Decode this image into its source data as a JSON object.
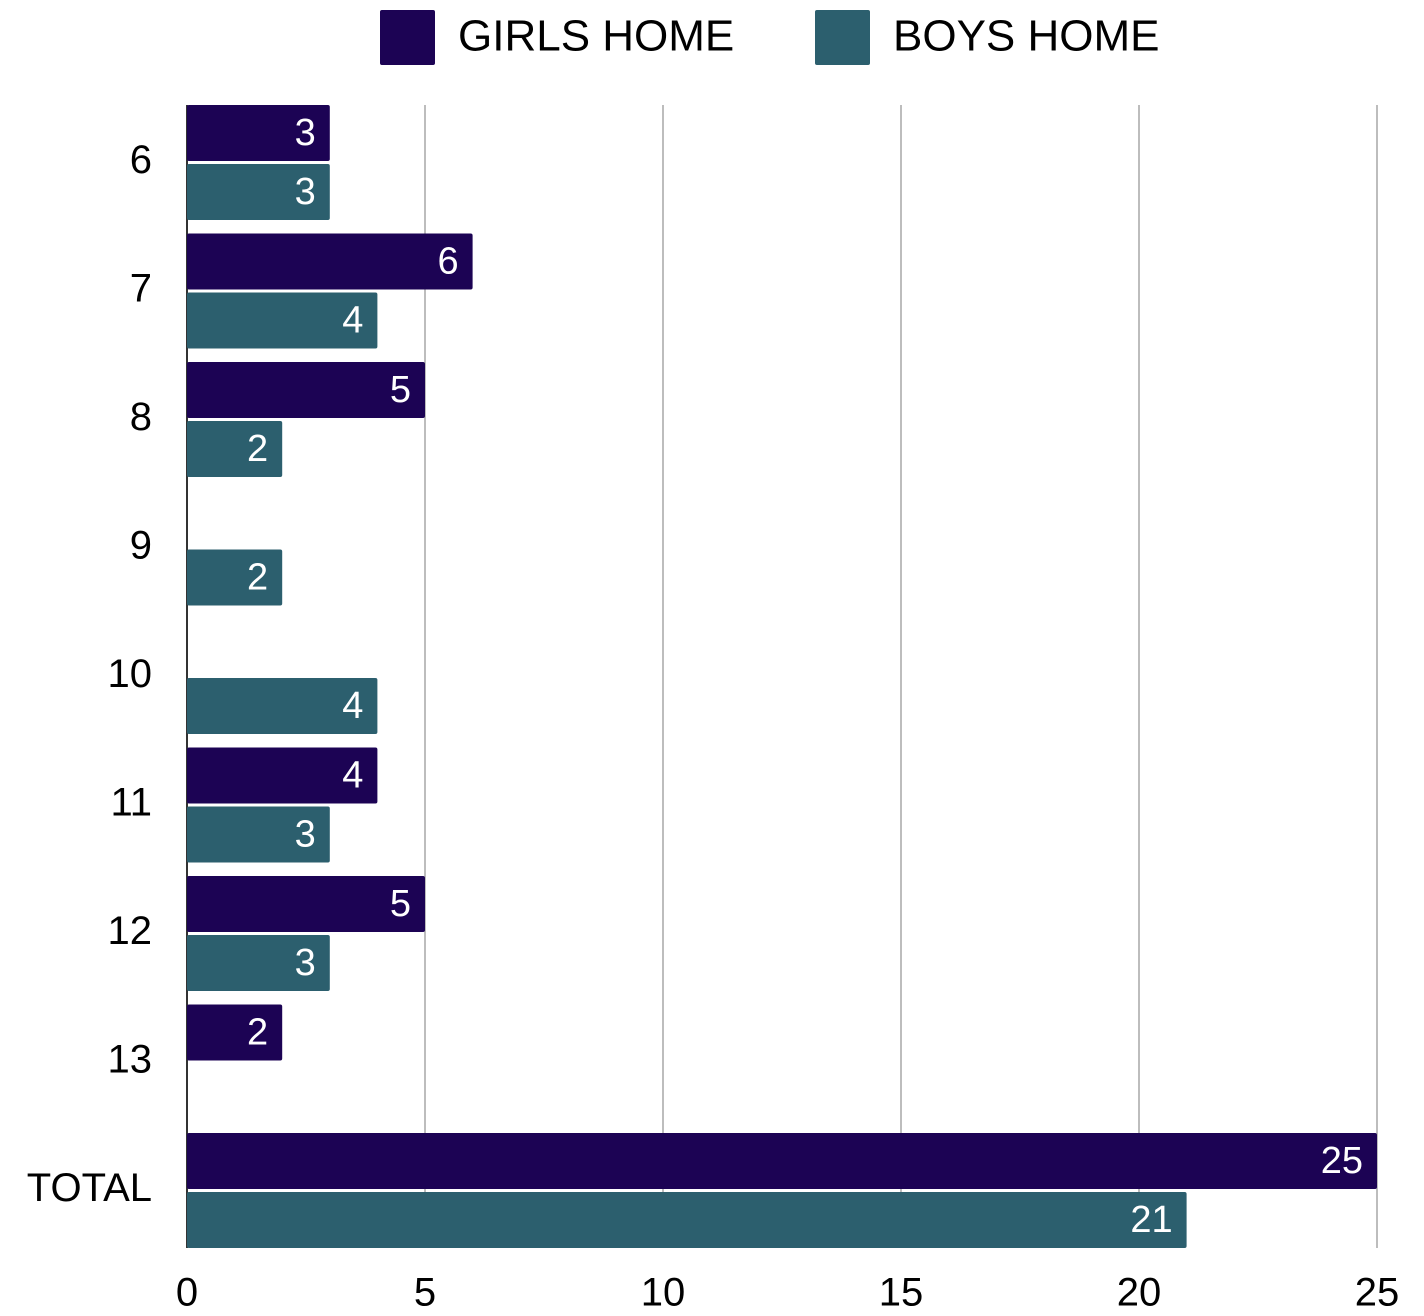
{
  "chart_data": {
    "type": "hbar",
    "categories": [
      "6",
      "7",
      "8",
      "9",
      "10",
      "11",
      "12",
      "13",
      "TOTAL"
    ],
    "series": [
      {
        "name": "GIRLS HOME",
        "color": "#1c0354",
        "values": [
          3,
          6,
          5,
          null,
          null,
          4,
          5,
          2,
          25
        ]
      },
      {
        "name": "BOYS HOME",
        "color": "#2c5f6e",
        "values": [
          3,
          4,
          2,
          2,
          4,
          3,
          3,
          null,
          21
        ]
      }
    ],
    "xlim": [
      0,
      25
    ],
    "xticks": [
      0,
      5,
      10,
      15,
      20,
      25
    ],
    "grid": true,
    "legend": "top"
  }
}
